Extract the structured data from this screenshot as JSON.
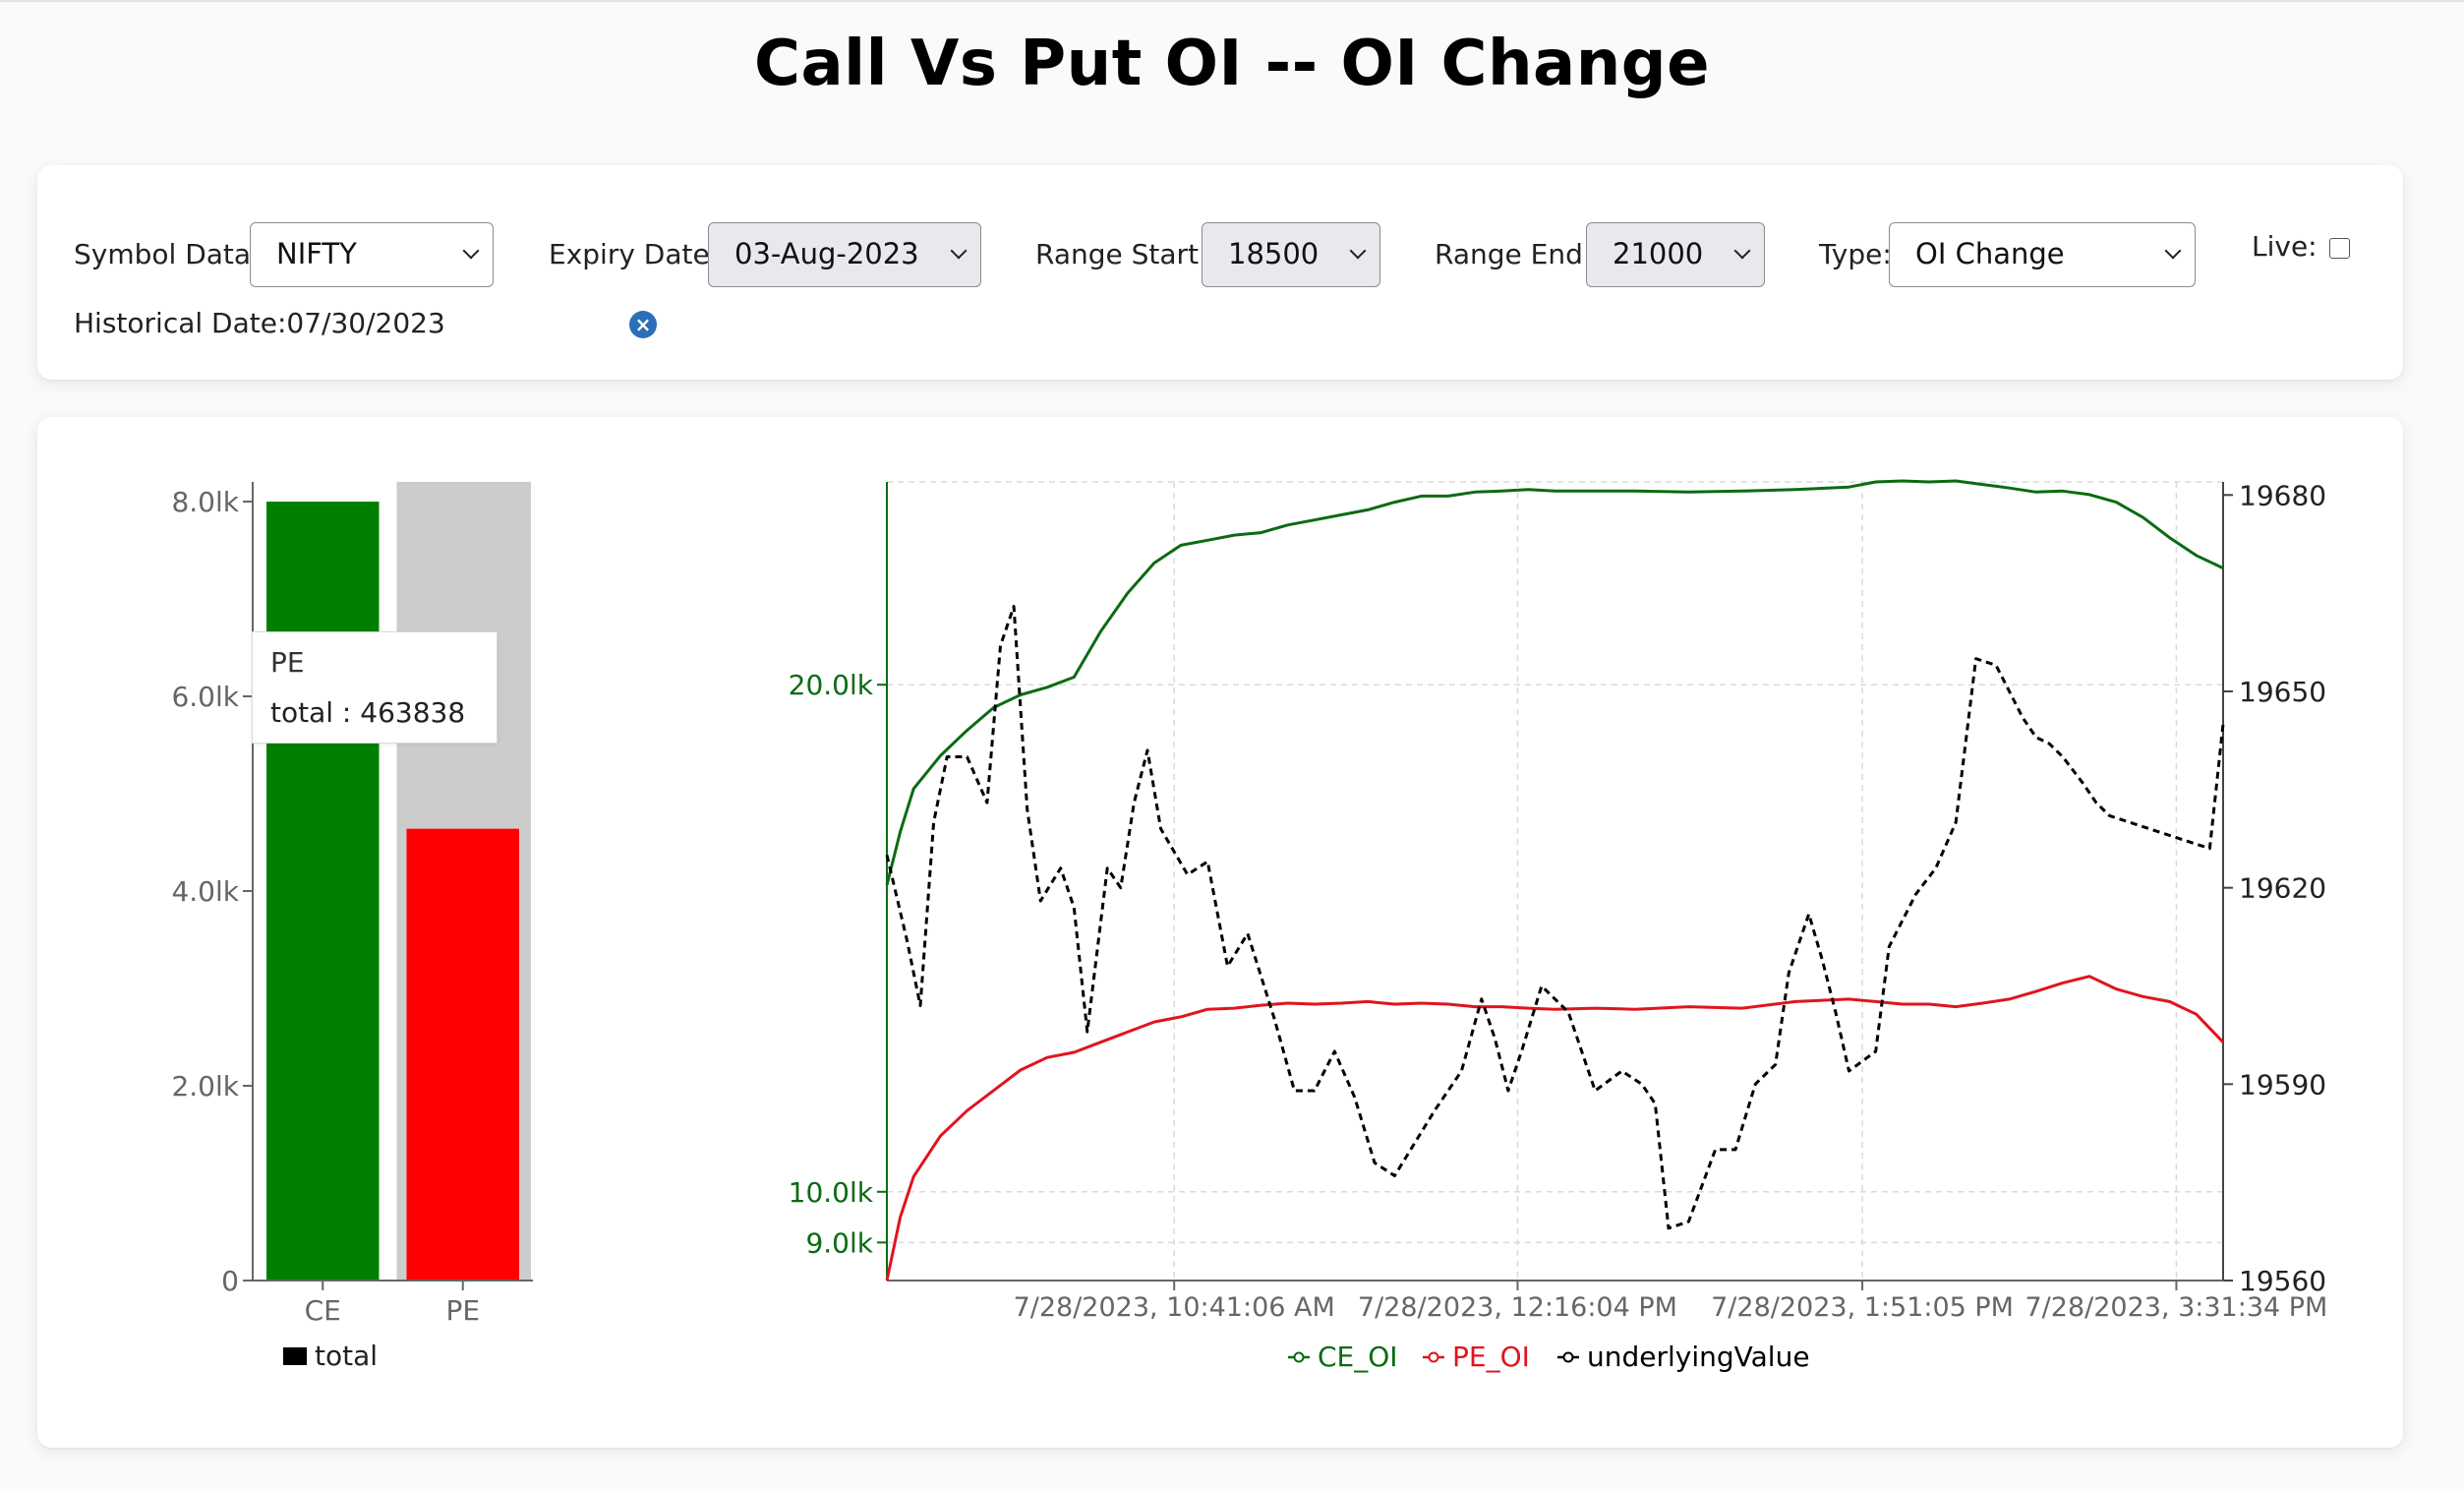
{
  "page": {
    "title": "Call Vs Put OI -- OI Change"
  },
  "controls": {
    "symbol": {
      "label": "Symbol Data:",
      "value": "NIFTY"
    },
    "expiry": {
      "label": "Expiry Date:",
      "value": "03-Aug-2023"
    },
    "range_start": {
      "label": "Range Start:",
      "value": "18500"
    },
    "range_end": {
      "label": "Range End:",
      "value": "21000"
    },
    "type": {
      "label": "Type:",
      "value": "OI Change"
    },
    "live": {
      "label": "Live:",
      "checked": false
    },
    "historical_date": {
      "label": "Historical Date:",
      "value": "07/30/2023",
      "clear_icon": "close-icon"
    }
  },
  "colors": {
    "ce": "#008000",
    "pe": "#ff0000",
    "ce_line": "#0b6b12",
    "pe_line": "#e0141e",
    "underlying": "#000000",
    "highlight": "#cccccc"
  },
  "chart_data": [
    {
      "type": "bar",
      "categories": [
        "CE",
        "PE"
      ],
      "series": [
        {
          "name": "total",
          "values": [
            8.0,
            4.64
          ]
        }
      ],
      "value_unit_note": "lk",
      "ylim": [
        0,
        8.0
      ],
      "yticks": [
        "0",
        "2.0lk",
        "4.0lk",
        "6.0lk",
        "8.0lk"
      ],
      "xticks": [
        "CE",
        "PE"
      ],
      "legend": [
        "total"
      ],
      "legend_position": "bottom",
      "highlighted_category": "PE",
      "tooltip": {
        "name": "PE",
        "text": "total : 463838"
      }
    },
    {
      "type": "line",
      "x_ticks": [
        "7/28/2023, 10:41:06 AM",
        "7/28/2023, 12:16:04 PM",
        "7/28/2023, 1:51:05 PM",
        "7/28/2023, 3:31:34 PM"
      ],
      "left_ylim": [
        8.25,
        24.0
      ],
      "left_ticks": [
        {
          "label": "9.0lk",
          "value": 9.0
        },
        {
          "label": "10.0lk",
          "value": 10.0
        },
        {
          "label": "20.0lk",
          "value": 20.0
        }
      ],
      "right_ylim": [
        19560,
        19682
      ],
      "right_ticks": [
        "19560",
        "19590",
        "19620",
        "19650",
        "19680"
      ],
      "grid": true,
      "legend": [
        "CE_OI",
        "PE_OI",
        "underlyingValue"
      ],
      "legend_position": "bottom",
      "series": [
        {
          "name": "CE_OI",
          "axis": "left",
          "style": "solid",
          "x": [
            0,
            0.01,
            0.02,
            0.04,
            0.06,
            0.08,
            0.1,
            0.12,
            0.14,
            0.16,
            0.18,
            0.2,
            0.22,
            0.24,
            0.26,
            0.28,
            0.3,
            0.32,
            0.34,
            0.36,
            0.38,
            0.4,
            0.42,
            0.44,
            0.46,
            0.48,
            0.5,
            0.53,
            0.56,
            0.6,
            0.64,
            0.68,
            0.72,
            0.74,
            0.76,
            0.78,
            0.8,
            0.82,
            0.84,
            0.86,
            0.88,
            0.9,
            0.92,
            0.94,
            0.96,
            0.98,
            1.0
          ],
          "values": [
            16.05,
            17.1,
            17.95,
            18.6,
            19.1,
            19.55,
            19.8,
            19.95,
            20.15,
            21.05,
            21.8,
            22.4,
            22.75,
            22.85,
            22.95,
            23.0,
            23.15,
            23.25,
            23.35,
            23.45,
            23.6,
            23.72,
            23.72,
            23.8,
            23.82,
            23.85,
            23.82,
            23.82,
            23.82,
            23.8,
            23.82,
            23.85,
            23.9,
            24.0,
            24.02,
            24.0,
            24.02,
            23.95,
            23.88,
            23.8,
            23.82,
            23.75,
            23.6,
            23.3,
            22.9,
            22.55,
            22.3
          ]
        },
        {
          "name": "PE_OI",
          "axis": "left",
          "style": "solid",
          "x": [
            0,
            0.01,
            0.02,
            0.04,
            0.06,
            0.08,
            0.1,
            0.12,
            0.14,
            0.16,
            0.18,
            0.2,
            0.22,
            0.24,
            0.26,
            0.28,
            0.3,
            0.32,
            0.34,
            0.36,
            0.38,
            0.4,
            0.42,
            0.44,
            0.46,
            0.48,
            0.5,
            0.53,
            0.56,
            0.6,
            0.64,
            0.68,
            0.72,
            0.74,
            0.76,
            0.78,
            0.8,
            0.82,
            0.84,
            0.86,
            0.88,
            0.9,
            0.92,
            0.94,
            0.96,
            0.98,
            1.0
          ],
          "values": [
            8.25,
            9.5,
            10.3,
            11.1,
            11.6,
            12.0,
            12.4,
            12.65,
            12.75,
            12.95,
            13.15,
            13.35,
            13.45,
            13.6,
            13.62,
            13.68,
            13.72,
            13.7,
            13.72,
            13.75,
            13.7,
            13.72,
            13.7,
            13.65,
            13.65,
            13.62,
            13.6,
            13.62,
            13.6,
            13.65,
            13.62,
            13.75,
            13.8,
            13.75,
            13.7,
            13.7,
            13.65,
            13.72,
            13.8,
            13.95,
            14.12,
            14.25,
            14.0,
            13.85,
            13.75,
            13.5,
            12.95
          ]
        },
        {
          "name": "underlyingValue",
          "axis": "right",
          "style": "dashed",
          "x": [
            0,
            0.015,
            0.025,
            0.035,
            0.045,
            0.06,
            0.075,
            0.085,
            0.095,
            0.105,
            0.115,
            0.13,
            0.14,
            0.15,
            0.165,
            0.175,
            0.185,
            0.195,
            0.205,
            0.225,
            0.24,
            0.255,
            0.27,
            0.29,
            0.305,
            0.32,
            0.335,
            0.35,
            0.365,
            0.38,
            0.395,
            0.41,
            0.43,
            0.445,
            0.455,
            0.465,
            0.475,
            0.49,
            0.51,
            0.53,
            0.55,
            0.565,
            0.575,
            0.585,
            0.6,
            0.62,
            0.635,
            0.65,
            0.665,
            0.675,
            0.69,
            0.7,
            0.71,
            0.72,
            0.74,
            0.75,
            0.77,
            0.785,
            0.8,
            0.815,
            0.83,
            0.84,
            0.85,
            0.86,
            0.87,
            0.88,
            0.895,
            0.905,
            0.915,
            0.93,
            0.945,
            0.96,
            0.975,
            0.99,
            1.0
          ],
          "values": [
            19625,
            19612,
            19602,
            19630,
            19640,
            19640,
            19633,
            19657,
            19663,
            19632,
            19618,
            19623,
            19617,
            19598,
            19623,
            19620,
            19633,
            19641,
            19629,
            19622,
            19624,
            19608,
            19613,
            19600,
            19589,
            19589,
            19595,
            19588,
            19578,
            19576,
            19581,
            19586,
            19592,
            19603,
            19597,
            19589,
            19595,
            19605,
            19601,
            19589,
            19592,
            19590,
            19587,
            19568,
            19569,
            19580,
            19580,
            19590,
            19593,
            19607,
            19616,
            19609,
            19601,
            19592,
            19595,
            19611,
            19619,
            19623,
            19630,
            19655,
            19654,
            19650,
            19646,
            19643,
            19642,
            19640,
            19636,
            19633,
            19631,
            19630,
            19629,
            19628,
            19627,
            19626,
            19645
          ]
        }
      ]
    }
  ]
}
